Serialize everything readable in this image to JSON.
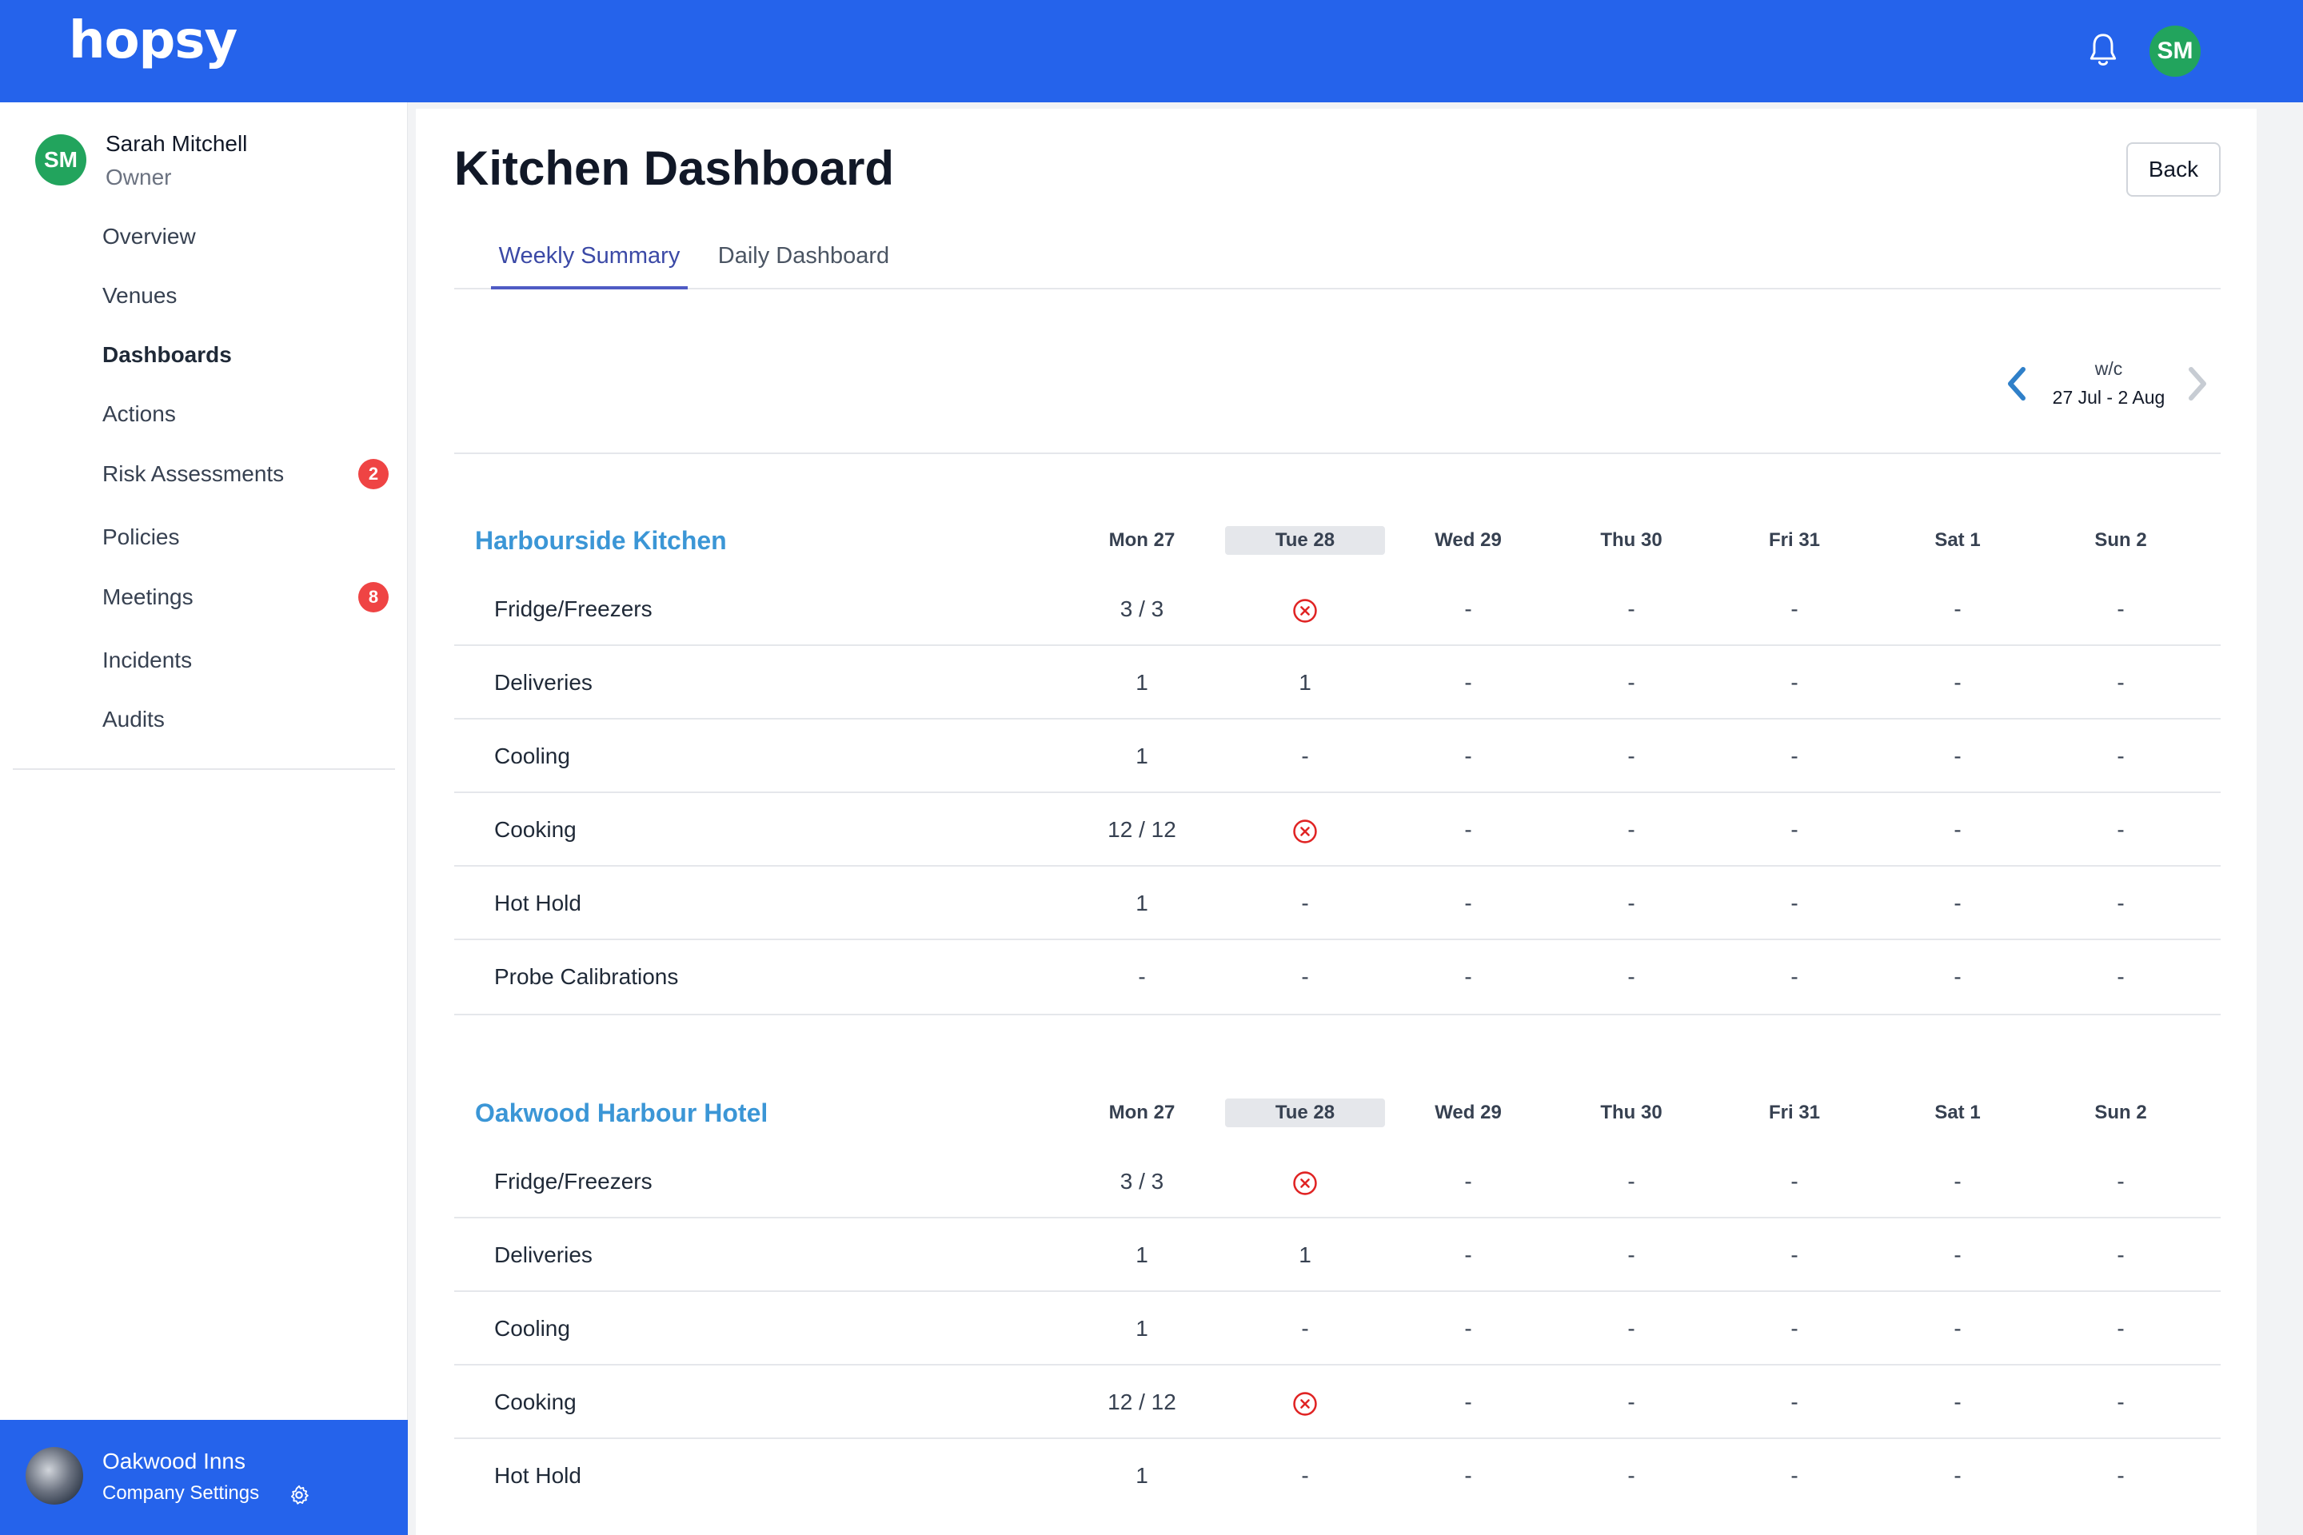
{
  "app": {
    "logo": "hopsy",
    "user_initials": "SM"
  },
  "sidebar": {
    "user": {
      "initials": "SM",
      "name": "Sarah Mitchell",
      "role": "Owner"
    },
    "items": [
      {
        "label": "Overview",
        "badge": null
      },
      {
        "label": "Venues",
        "badge": null
      },
      {
        "label": "Dashboards",
        "badge": null,
        "active": true
      },
      {
        "label": "Actions",
        "badge": null
      },
      {
        "label": "Risk Assessments",
        "badge": "2"
      },
      {
        "label": "Policies",
        "badge": null
      },
      {
        "label": "Meetings",
        "badge": "8"
      },
      {
        "label": "Incidents",
        "badge": null
      },
      {
        "label": "Audits",
        "badge": null
      }
    ],
    "company": {
      "name": "Oakwood Inns",
      "settings_label": "Company Settings"
    }
  },
  "main": {
    "title": "Kitchen Dashboard",
    "back_label": "Back",
    "tabs": [
      {
        "label": "Weekly Summary",
        "active": true
      },
      {
        "label": "Daily Dashboard",
        "active": false
      }
    ],
    "week": {
      "prefix": "w/c",
      "range": "27 Jul - 2 Aug"
    },
    "days": [
      "Mon 27",
      "Tue 28",
      "Wed 29",
      "Thu 30",
      "Fri 31",
      "Sat 1",
      "Sun 2"
    ],
    "today_index": 1,
    "venues": [
      {
        "name": "Harbourside Kitchen",
        "rows": [
          {
            "label": "Fridge/Freezers",
            "values": [
              "3 / 3",
              "x",
              "-",
              "-",
              "-",
              "-",
              "-"
            ]
          },
          {
            "label": "Deliveries",
            "values": [
              "1",
              "1",
              "-",
              "-",
              "-",
              "-",
              "-"
            ]
          },
          {
            "label": "Cooling",
            "values": [
              "1",
              "-",
              "-",
              "-",
              "-",
              "-",
              "-"
            ]
          },
          {
            "label": "Cooking",
            "values": [
              "12 / 12",
              "x",
              "-",
              "-",
              "-",
              "-",
              "-"
            ]
          },
          {
            "label": "Hot Hold",
            "values": [
              "1",
              "-",
              "-",
              "-",
              "-",
              "-",
              "-"
            ]
          },
          {
            "label": "Probe Calibrations",
            "values": [
              "-",
              "-",
              "-",
              "-",
              "-",
              "-",
              "-"
            ]
          }
        ]
      },
      {
        "name": "Oakwood Harbour Hotel",
        "rows": [
          {
            "label": "Fridge/Freezers",
            "values": [
              "3 / 3",
              "x",
              "-",
              "-",
              "-",
              "-",
              "-"
            ]
          },
          {
            "label": "Deliveries",
            "values": [
              "1",
              "1",
              "-",
              "-",
              "-",
              "-",
              "-"
            ]
          },
          {
            "label": "Cooling",
            "values": [
              "1",
              "-",
              "-",
              "-",
              "-",
              "-",
              "-"
            ]
          },
          {
            "label": "Cooking",
            "values": [
              "12 / 12",
              "x",
              "-",
              "-",
              "-",
              "-",
              "-"
            ]
          },
          {
            "label": "Hot Hold",
            "values": [
              "1",
              "-",
              "-",
              "-",
              "-",
              "-",
              "-"
            ]
          }
        ]
      }
    ]
  },
  "colors": {
    "brand": "#2563eb",
    "venue_link": "#3b96d6",
    "badge": "#ef4444",
    "error": "#e02424",
    "avatar": "#22a45d"
  }
}
